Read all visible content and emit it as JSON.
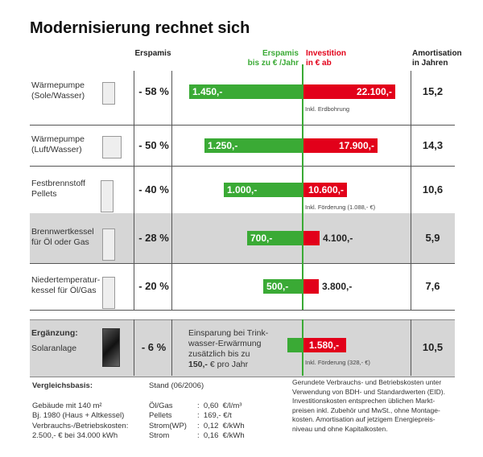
{
  "title": "Modernisierung rechnet sich",
  "headers": {
    "ersparnis": "Erspamis",
    "ersparnis_jahr_1": "Erspamis",
    "ersparnis_jahr_2": "bis zu € /Jahr",
    "investition_1": "Investition",
    "investition_2": "in € ab",
    "amortisation_1": "Amortisation",
    "amortisation_2": "in Jahren"
  },
  "colors": {
    "savings": "#3aaa35",
    "investment": "#e2001a",
    "shaded_row": "#d6d6d6"
  },
  "chart_data": {
    "type": "bar",
    "orientation": "horizontal diverging",
    "categories": [
      "Wärmepumpe (Sole/Wasser)",
      "Wärmepumpe (Luft/Wasser)",
      "Festbrennstoff Pellets",
      "Brennwertkessel für Öl oder Gas",
      "Niedertemperaturkessel für Öl/Gas"
    ],
    "series": [
      {
        "name": "Erspamis bis zu € /Jahr",
        "values": [
          1450,
          1250,
          1000,
          700,
          500
        ]
      },
      {
        "name": "Investition in € ab",
        "values": [
          22100,
          17900,
          10600,
          4100,
          3800
        ]
      }
    ]
  },
  "rows": [
    {
      "label1": "Wärmepumpe",
      "label2": "(Sole/Wasser)",
      "percent": "- 58 %",
      "savings": 1450,
      "savings_label": "1.450,-",
      "invest": 22100,
      "invest_label": "22.100,-",
      "note": "Inkl. Erdbohrung",
      "amort": "15,2",
      "grey": false,
      "icon": "heat-pump-icon"
    },
    {
      "label1": "Wärmepumpe",
      "label2": "(Luft/Wasser)",
      "percent": "- 50 %",
      "savings": 1250,
      "savings_label": "1.250,-",
      "invest": 17900,
      "invest_label": "17.900,-",
      "note": "",
      "amort": "14,3",
      "grey": false,
      "icon": "air-heat-pump-icon"
    },
    {
      "label1": "Festbrennstoff",
      "label2": "Pellets",
      "percent": "- 40 %",
      "savings": 1000,
      "savings_label": "1.000,-",
      "invest": 10600,
      "invest_label": "10.600,-",
      "note": "Inkl. Förderung (1.088,- €)",
      "amort": "10,6",
      "grey": false,
      "icon": "pellet-boiler-icon"
    },
    {
      "label1": "Brennwertkessel",
      "label2": "für Öl oder Gas",
      "percent": "- 28 %",
      "savings": 700,
      "savings_label": "700,-",
      "invest": 4100,
      "invest_label": "4.100,-",
      "note": "",
      "amort": "5,9",
      "grey": true,
      "icon": "condensing-boiler-icon"
    },
    {
      "label1": "Niedertemperatur-",
      "label2": "kessel für Öl/Gas",
      "percent": "- 20 %",
      "savings": 500,
      "savings_label": "500,-",
      "invest": 3800,
      "invest_label": "3.800,-",
      "note": "",
      "amort": "7,6",
      "grey": false,
      "icon": "low-temp-boiler-icon"
    }
  ],
  "solar": {
    "label1": "Ergänzung:",
    "label2": "Solaranlage",
    "percent": "- 6 %",
    "text1": "Einsparung bei Trink-",
    "text2": "wasser-Erwärmung",
    "text3": "zusätzlich bis zu",
    "text4_bold": "150,-",
    "text4_rest": "€ pro Jahr",
    "invest_label": "1.580,-",
    "note": "Inkl. Förderung (328,- €)",
    "amort": "10,5"
  },
  "footer": {
    "basis_title": "Vergleichsbasis:",
    "basis_lines": [
      "Gebäude mit 140 m²",
      "Bj. 1980 (Haus + Altkessel)",
      "Verbrauchs-/Betriebskosten:",
      "2.500,- € bei 34.000 kWh"
    ],
    "stand": "Stand (06/2006)",
    "prices": [
      {
        "name": "Öl/Gas",
        "value": ":  0,60  €/l/m³"
      },
      {
        "name": "Pellets",
        "value": ":  169,- €/t"
      },
      {
        "name": "Strom(WP)",
        "value": ":  0,12  €/kWh"
      },
      {
        "name": "Strom",
        "value": ":  0,16  €/kWh"
      }
    ],
    "notes": [
      "Gerundete Verbrauchs- und Betriebskosten unter",
      "Verwendung von BDH- und Standardwerten (EID).",
      "Investitionskosten entsprechen üblichen Markt-",
      "preisen inkl. Zubehör und MwSt., ohne Montage-",
      "kosten. Amortisation auf jetzigem Energiepreis-",
      "niveau und ohne Kapitalkosten."
    ]
  }
}
